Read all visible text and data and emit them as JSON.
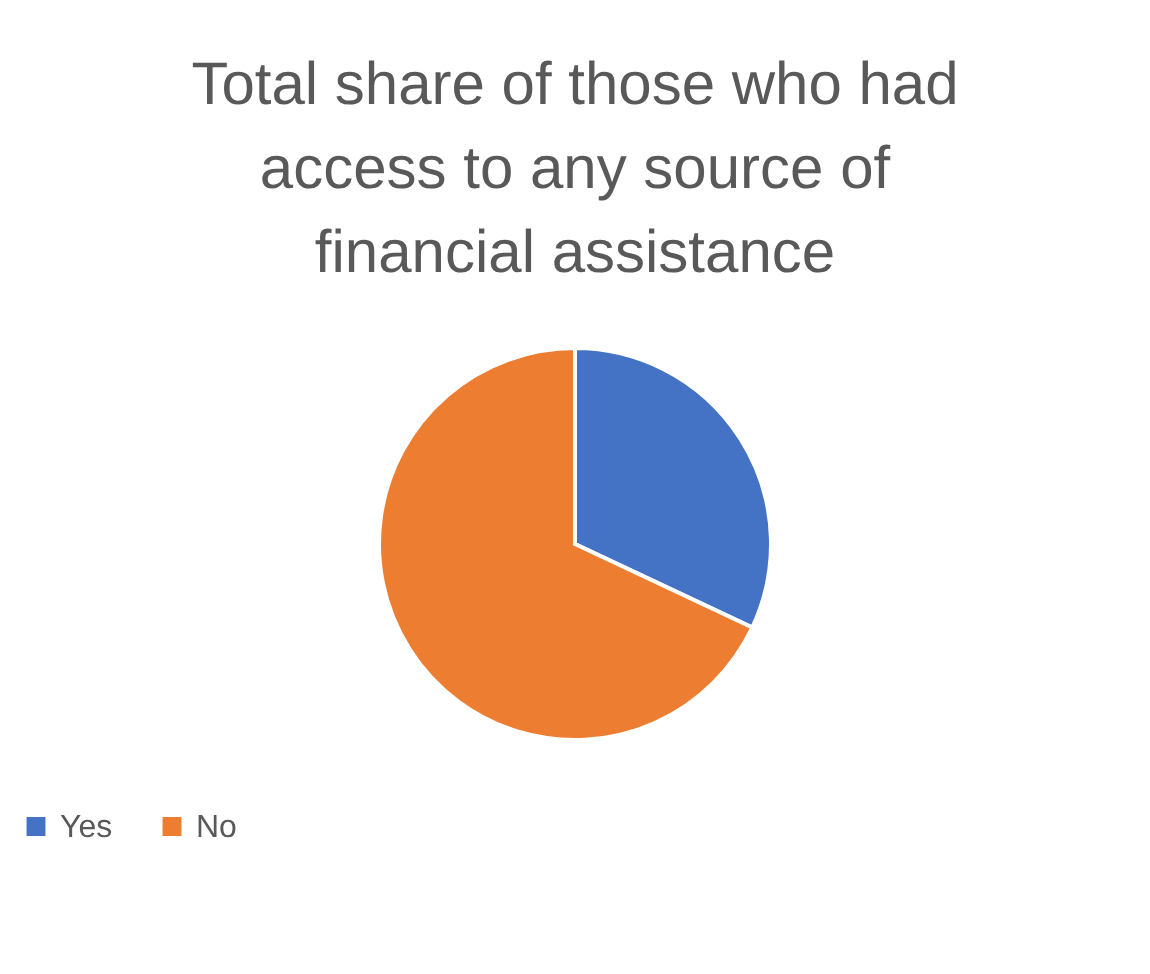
{
  "chart_data": {
    "type": "pie",
    "title": "Total share of those who had access to any source of financial assistance",
    "categories": [
      "Yes",
      "No"
    ],
    "values": [
      32,
      68
    ],
    "colors": [
      "#4472c4",
      "#ed7d31"
    ],
    "legend": "bottom"
  }
}
